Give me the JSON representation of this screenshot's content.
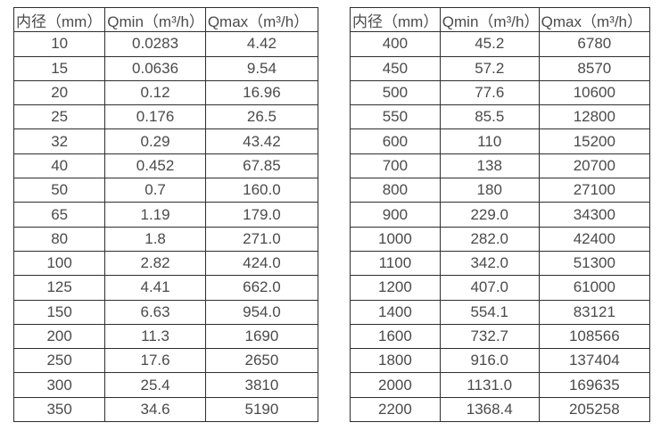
{
  "colors": {
    "border": "#2e2e2e",
    "text": "#4a4a4a",
    "background": "#ffffff"
  },
  "tables": [
    {
      "name": "flow-table-small-diameters",
      "headers": [
        "内径（mm）",
        "Qmin（m³/h）",
        "Qmax（m³/h）"
      ],
      "rows": [
        [
          "10",
          "0.0283",
          "4.42"
        ],
        [
          "15",
          "0.0636",
          "9.54"
        ],
        [
          "20",
          "0.12",
          "16.96"
        ],
        [
          "25",
          "0.176",
          "26.5"
        ],
        [
          "32",
          "0.29",
          "43.42"
        ],
        [
          "40",
          "0.452",
          "67.85"
        ],
        [
          "50",
          "0.7",
          "160.0"
        ],
        [
          "65",
          "1.19",
          "179.0"
        ],
        [
          "80",
          "1.8",
          "271.0"
        ],
        [
          "100",
          "2.82",
          "424.0"
        ],
        [
          "125",
          "4.41",
          "662.0"
        ],
        [
          "150",
          "6.63",
          "954.0"
        ],
        [
          "200",
          "11.3",
          "1690"
        ],
        [
          "250",
          "17.6",
          "2650"
        ],
        [
          "300",
          "25.4",
          "3810"
        ],
        [
          "350",
          "34.6",
          "5190"
        ]
      ]
    },
    {
      "name": "flow-table-large-diameters",
      "headers": [
        "内径（mm）",
        "Qmin（m³/h）",
        "Qmax（m³/h）"
      ],
      "rows": [
        [
          "400",
          "45.2",
          "6780"
        ],
        [
          "450",
          "57.2",
          "8570"
        ],
        [
          "500",
          "77.6",
          "10600"
        ],
        [
          "550",
          "85.5",
          "12800"
        ],
        [
          "600",
          "110",
          "15200"
        ],
        [
          "700",
          "138",
          "20700"
        ],
        [
          "800",
          "180",
          "27100"
        ],
        [
          "900",
          "229.0",
          "34300"
        ],
        [
          "1000",
          "282.0",
          "42400"
        ],
        [
          "1100",
          "342.0",
          "51300"
        ],
        [
          "1200",
          "407.0",
          "61000"
        ],
        [
          "1400",
          "554.1",
          "83121"
        ],
        [
          "1600",
          "732.7",
          "108566"
        ],
        [
          "1800",
          "916.0",
          "137404"
        ],
        [
          "2000",
          "1131.0",
          "169635"
        ],
        [
          "2200",
          "1368.4",
          "205258"
        ]
      ]
    }
  ]
}
